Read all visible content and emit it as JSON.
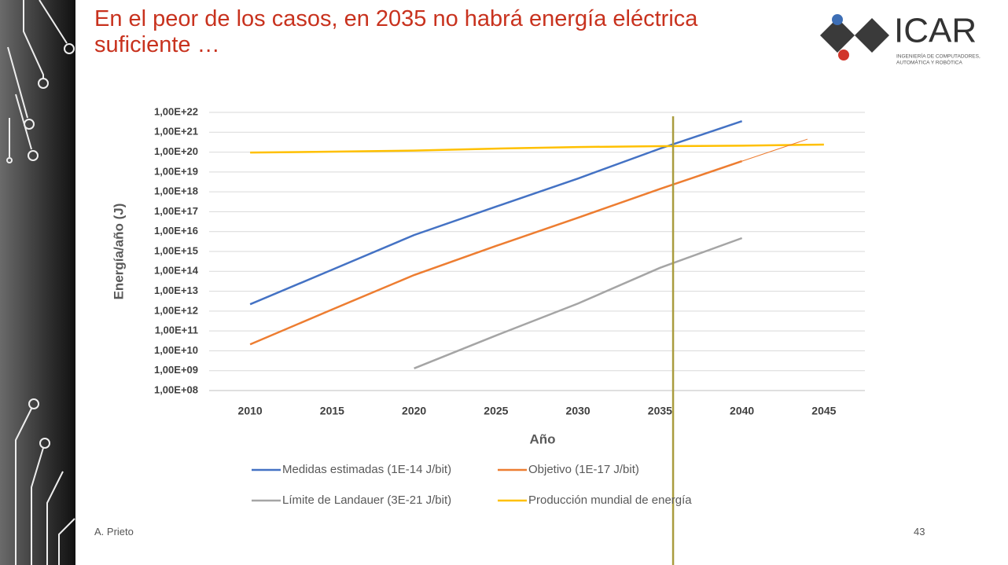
{
  "header": {
    "title": "En el peor de los casos, en 2035 no habrá energía eléctrica suficiente …"
  },
  "logo": {
    "name": "ICAR",
    "subtitle_lines": [
      "INGENIERÍA DE COMPUTADORES,",
      "AUTOMÁTICA Y ROBÓTICA"
    ]
  },
  "chart_data": {
    "type": "line",
    "x_label": "Año",
    "y_label": "Energía/año (J)",
    "x": [
      2010,
      2015,
      2020,
      2025,
      2030,
      2035,
      2040,
      2045
    ],
    "series": [
      {
        "name": "Medidas estimadas (1E-14 J/bit)",
        "color": "#4472c4",
        "values": [
          2200000000000.0,
          120000000000000.0,
          6700000000000000.0,
          1.8e+17,
          4.7e+18,
          1.5e+20,
          3.6e+21,
          null
        ]
      },
      {
        "name": "Objetivo (1E-17 J/bit)",
        "color": "#ed7d31",
        "values": [
          21000000000.0,
          1200000000000.0,
          65000000000000.0,
          1900000000000000.0,
          5e+16,
          1.4e+18,
          3.5e+19,
          null
        ]
      },
      {
        "name": "Límite de Landauer (3E-21 J/bit)",
        "color": "#a5a5a5",
        "values": [
          null,
          null,
          1300000000.0,
          59000000000.0,
          2400000000000.0,
          150000000000000.0,
          4700000000000000.0,
          null
        ]
      },
      {
        "name": "Producción mundial de energía",
        "color": "#ffc000",
        "values": [
          9.5e+19,
          1.05e+20,
          1.2e+20,
          1.5e+20,
          1.8e+20,
          2e+20,
          2.1e+20,
          2.4e+20
        ]
      }
    ],
    "xlim": [
      2007.5,
      2047.5
    ],
    "xticks": [
      2010,
      2015,
      2020,
      2025,
      2030,
      2035,
      2040,
      2045
    ],
    "ylog": true,
    "ylim": [
      100000000.0,
      1e+22
    ],
    "yticks": [
      {
        "value": 100000000.0,
        "label": "1,00E+08"
      },
      {
        "value": 1000000000.0,
        "label": "1,00E+09"
      },
      {
        "value": 10000000000.0,
        "label": "1,00E+10"
      },
      {
        "value": 100000000000.0,
        "label": "1,00E+11"
      },
      {
        "value": 1000000000000.0,
        "label": "1,00E+12"
      },
      {
        "value": 10000000000000.0,
        "label": "1,00E+13"
      },
      {
        "value": 100000000000000.0,
        "label": "1,00E+14"
      },
      {
        "value": 1000000000000000.0,
        "label": "1,00E+15"
      },
      {
        "value": 1e+16,
        "label": "1,00E+16"
      },
      {
        "value": 1e+17,
        "label": "1,00E+17"
      },
      {
        "value": 1e+18,
        "label": "1,00E+18"
      },
      {
        "value": 1e+19,
        "label": "1,00E+19"
      },
      {
        "value": 1e+20,
        "label": "1,00E+20"
      },
      {
        "value": 1e+21,
        "label": "1,00E+21"
      },
      {
        "value": 1e+22,
        "label": "1,00E+22"
      }
    ],
    "grid": true,
    "legend": "bottom",
    "reference_line": {
      "x": 2035.8,
      "color": "#aa9c3e"
    },
    "trend_line": {
      "x": [
        2040,
        2044
      ],
      "values": [
        3.5e+19,
        4.5e+20
      ],
      "color": "#ed7d31"
    }
  },
  "footer": {
    "author": "A. Prieto",
    "page": "43"
  }
}
